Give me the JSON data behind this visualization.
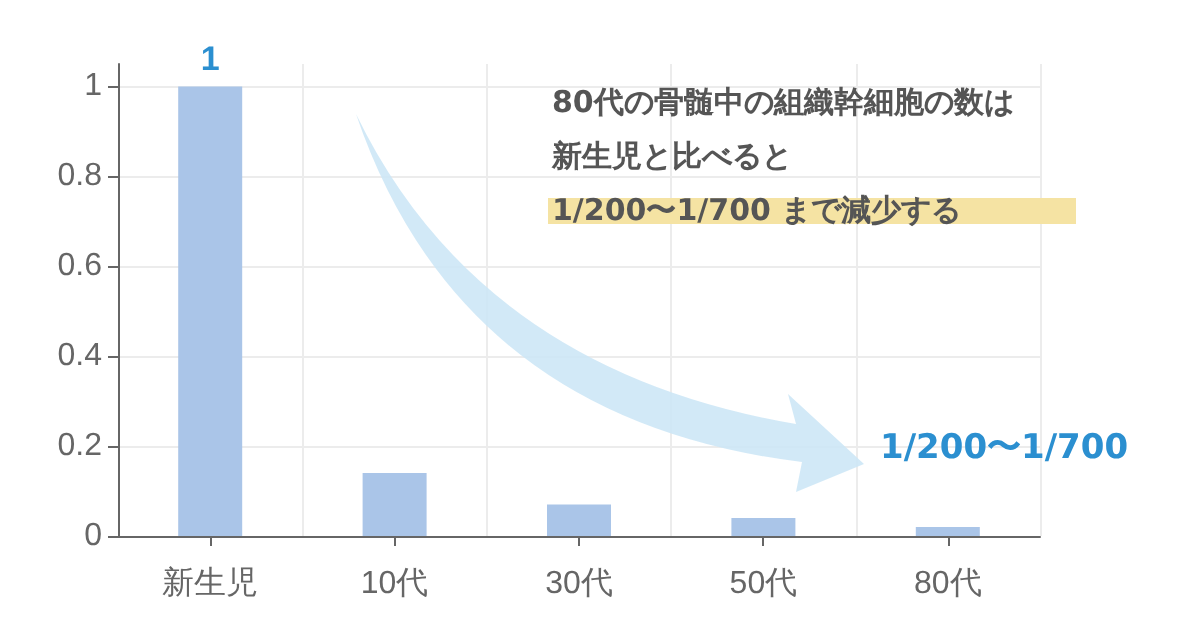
{
  "chart_data": {
    "type": "bar",
    "categories": [
      "新生児",
      "10代",
      "30代",
      "50代",
      "80代"
    ],
    "values": [
      1,
      0.14,
      0.07,
      0.04,
      0.02
    ],
    "value_labels": [
      "1",
      null,
      null,
      null,
      null
    ],
    "color": "#aac5e8",
    "ylim": [
      0,
      1.05
    ],
    "yticks": [
      0,
      0.2,
      0.4,
      0.6,
      0.8,
      1
    ],
    "grid": true,
    "annotations": [
      "80代の骨髄中の組織幹細胞の数は",
      "新生児と比べると",
      "1/200〜1/700 まで減少する",
      "1/200〜1/700"
    ]
  }
}
